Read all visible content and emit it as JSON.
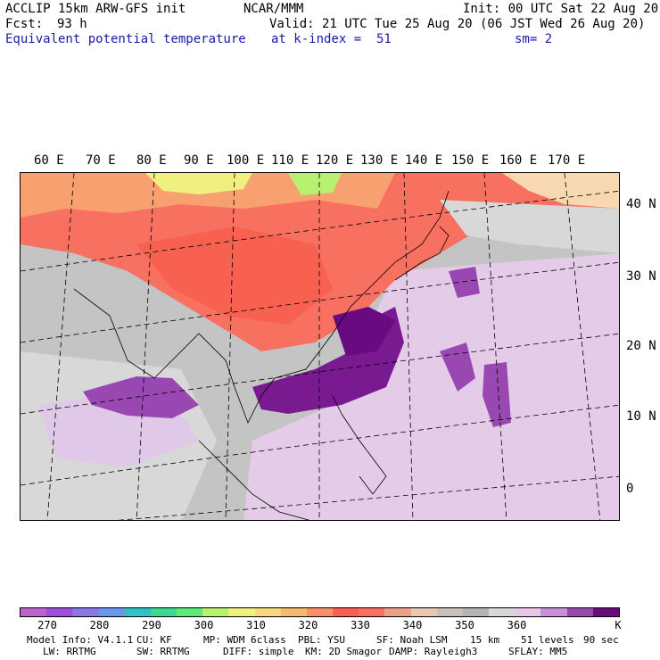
{
  "header": {
    "model": "ACCLIP 15km ARW-GFS init",
    "org": "NCAR/MMM",
    "init": "Init: 00 UTC Sat 22 Aug 20",
    "fcst_label": "Fcst:",
    "fcst_value": "93 h",
    "valid": "Valid: 21 UTC Tue 25 Aug 20 (06 JST Wed 26 Aug 20)",
    "field": "Equivalent potential temperature",
    "level": "at k-index =  51",
    "smooth": "sm= 2"
  },
  "axes": {
    "lon_labels": [
      "60 E",
      "70 E",
      "80 E",
      "90 E",
      "100 E",
      "110 E",
      "120 E",
      "130 E",
      "140 E",
      "150 E",
      "160 E",
      "170 E"
    ],
    "lat_labels": [
      "40 N",
      "30 N",
      "20 N",
      "10 N",
      "0"
    ]
  },
  "colorbar": {
    "colors": [
      "#c060d0",
      "#a050d8",
      "#8878e0",
      "#6a98e8",
      "#30c0c8",
      "#40d890",
      "#60e878",
      "#b8f070",
      "#f0f080",
      "#f8d880",
      "#f8b870",
      "#f89068",
      "#f86050",
      "#f87060",
      "#f0a088",
      "#e8c8b0",
      "#c8c0b8",
      "#b4b4b4",
      "#d8d8d8",
      "#e8c8e8",
      "#c890d8",
      "#9848b0",
      "#6a0a80"
    ],
    "tick_labels": [
      "270",
      "280",
      "290",
      "300",
      "310",
      "320",
      "330",
      "340",
      "350",
      "360",
      "K"
    ],
    "tick_values": [
      270,
      280,
      290,
      300,
      310,
      320,
      330,
      340,
      350,
      360
    ]
  },
  "footer": {
    "line1": [
      "Model Info: V4.1.1",
      "CU: KF",
      "MP: WDM 6class",
      "PBL: YSU",
      "SF: Noah LSM",
      "15 km",
      "51 levels",
      "90 sec"
    ],
    "line2": [
      "LW: RRTMG",
      "SW: RRTMG",
      "DIFF: simple",
      "KM: 2D Smagor",
      "DAMP: Rayleigh3",
      "SFLAY: MM5"
    ]
  }
}
